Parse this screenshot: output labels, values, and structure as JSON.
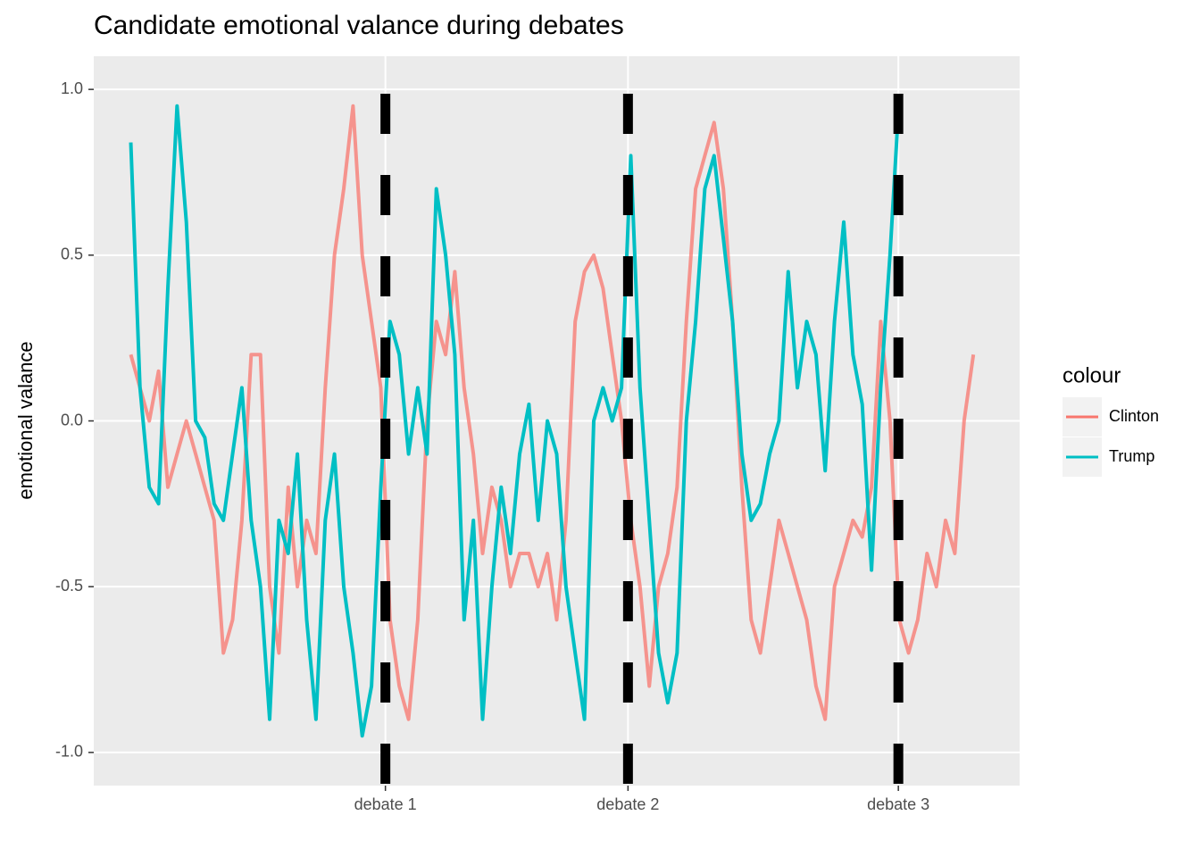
{
  "chart_data": {
    "type": "line",
    "title": "Candidate emotional valance during debates",
    "y_label": "emotional valance",
    "legend_title": "colour",
    "legend_position": "right",
    "grid": true,
    "xlim": [
      0,
      100
    ],
    "xticks": [
      {
        "value": 31.5,
        "label": "debate 1"
      },
      {
        "value": 57.7,
        "label": "debate 2"
      },
      {
        "value": 86.9,
        "label": "debate 3"
      }
    ],
    "ylim": [
      -1.1,
      1.1
    ],
    "yticks": [
      {
        "value": -1,
        "label": "-1.0"
      },
      -0.5,
      {
        "value": 0,
        "label": "0.0"
      },
      0.5,
      {
        "value": 1,
        "label": "1.0"
      }
    ],
    "x": [
      4,
      5,
      6,
      7,
      8,
      9,
      10,
      11,
      12,
      13,
      14,
      15,
      16,
      17,
      18,
      19,
      20,
      21,
      22,
      23,
      24,
      25,
      26,
      27,
      28,
      29,
      30,
      31,
      32,
      33,
      34,
      35,
      36,
      37,
      38,
      39,
      40,
      41,
      42,
      43,
      44,
      45,
      46,
      47,
      48,
      49,
      50,
      51,
      52,
      53,
      54,
      55,
      56,
      57,
      58,
      59,
      60,
      61,
      62,
      63,
      64,
      65,
      66,
      67,
      68,
      69,
      70,
      71,
      72,
      73,
      74,
      75,
      76,
      77,
      78,
      79,
      80,
      81,
      82,
      83,
      84,
      85,
      86,
      87,
      88,
      89,
      90,
      91,
      92,
      93,
      94,
      95
    ],
    "series": [
      {
        "name": "Clinton",
        "color": "#F8766D",
        "values": [
          0.2,
          0.1,
          0.0,
          0.15,
          -0.2,
          -0.1,
          0.0,
          -0.1,
          -0.2,
          -0.3,
          -0.7,
          -0.6,
          -0.3,
          0.2,
          0.2,
          -0.5,
          -0.7,
          -0.2,
          -0.5,
          -0.3,
          -0.4,
          0.1,
          0.5,
          0.7,
          0.95,
          0.5,
          0.3,
          0.1,
          -0.6,
          -0.8,
          -0.9,
          -0.6,
          0.0,
          0.3,
          0.2,
          0.45,
          0.1,
          -0.1,
          -0.4,
          -0.2,
          -0.3,
          -0.5,
          -0.4,
          -0.4,
          -0.5,
          -0.4,
          -0.6,
          -0.3,
          0.3,
          0.45,
          0.5,
          0.4,
          0.2,
          0.0,
          -0.3,
          -0.5,
          -0.8,
          -0.5,
          -0.4,
          -0.2,
          0.3,
          0.7,
          0.8,
          0.9,
          0.7,
          0.3,
          -0.2,
          -0.6,
          -0.7,
          -0.5,
          -0.3,
          -0.4,
          -0.5,
          -0.6,
          -0.8,
          -0.9,
          -0.5,
          -0.4,
          -0.3,
          -0.35,
          -0.2,
          0.3,
          0.0,
          -0.6,
          -0.7,
          -0.6,
          -0.4,
          -0.5,
          -0.3,
          -0.4,
          0.0,
          0.2
        ]
      },
      {
        "name": "Trump",
        "color": "#00BFC4",
        "values": [
          0.84,
          0.1,
          -0.2,
          -0.25,
          0.4,
          0.95,
          0.6,
          0.0,
          -0.05,
          -0.25,
          -0.3,
          -0.1,
          0.1,
          -0.3,
          -0.5,
          -0.9,
          -0.3,
          -0.4,
          -0.1,
          -0.6,
          -0.9,
          -0.3,
          -0.1,
          -0.5,
          -0.7,
          -0.95,
          -0.8,
          -0.2,
          0.3,
          0.2,
          -0.1,
          0.1,
          -0.1,
          0.7,
          0.5,
          0.2,
          -0.6,
          -0.3,
          -0.9,
          -0.5,
          -0.2,
          -0.4,
          -0.1,
          0.05,
          -0.3,
          0.0,
          -0.1,
          -0.5,
          -0.7,
          -0.9,
          0.0,
          0.1,
          0.0,
          0.1,
          0.8,
          0.1,
          -0.3,
          -0.7,
          -0.85,
          -0.7,
          0.0,
          0.3,
          0.7,
          0.8,
          0.55,
          0.3,
          -0.1,
          -0.3,
          -0.25,
          -0.1,
          0.0,
          0.45,
          0.1,
          0.3,
          0.2,
          -0.15,
          0.3,
          0.6,
          0.2,
          0.05,
          -0.45,
          0.1,
          0.5,
          0.98,
          null,
          null,
          null,
          null,
          null,
          null,
          null,
          null
        ]
      }
    ]
  }
}
